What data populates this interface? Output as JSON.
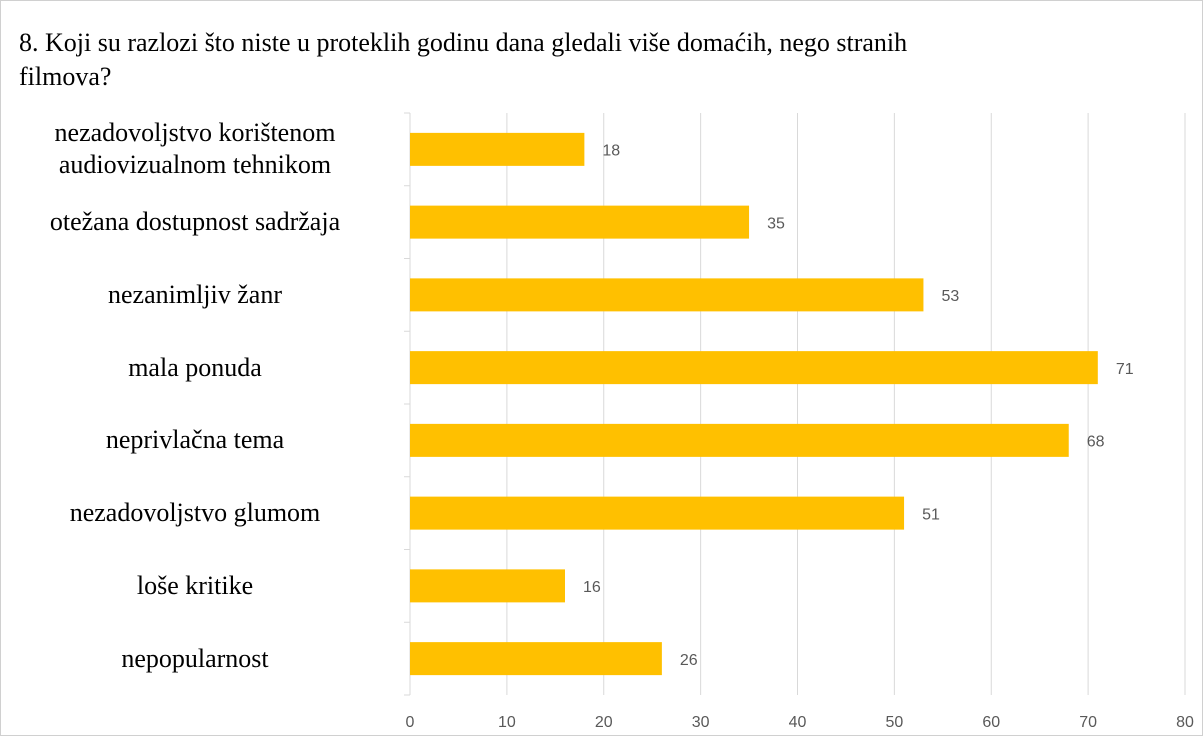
{
  "chart_data": {
    "type": "barh",
    "title": "8. Koji su razlozi što niste u proteklih godinu dana gledali više domaćih, nego stranih filmova?",
    "categories": [
      "nezadovoljstvo korištenom audiovizualnom tehnikom",
      "otežana dostupnost sadržaja",
      "nezanimljiv žanr",
      "mala ponuda",
      "neprivlačna tema",
      "nezadovoljstvo glumom",
      "loše kritike",
      "nepopularnost"
    ],
    "values": [
      18,
      35,
      53,
      71,
      68,
      51,
      16,
      26
    ],
    "color": "#ffc000",
    "xlim": [
      0,
      80
    ],
    "xticks": [
      0,
      10,
      20,
      30,
      40,
      50,
      60,
      70,
      80
    ],
    "grid": true
  }
}
